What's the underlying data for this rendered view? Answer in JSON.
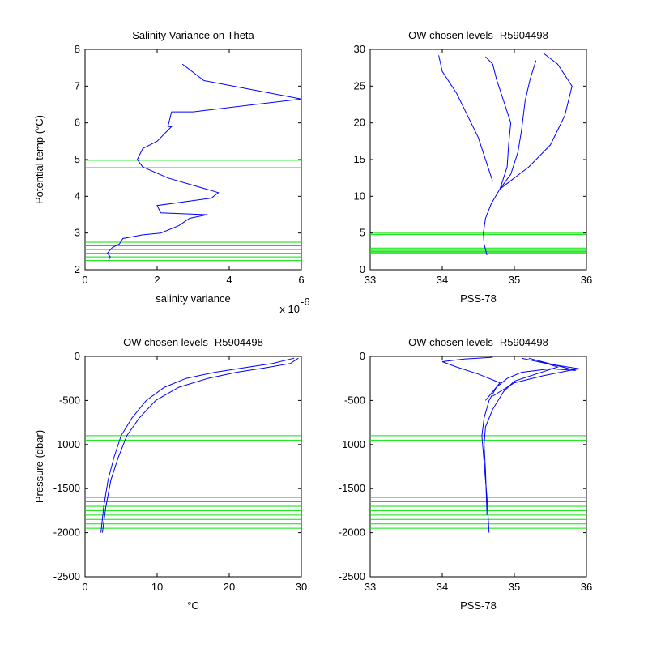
{
  "figure": {
    "colors": {
      "profile": "#0000ff",
      "levels": "#00e600"
    }
  },
  "chart_data": [
    {
      "type": "line",
      "title": "Salinity Variance on Theta",
      "xlabel": "salinity variance",
      "ylabel": "Potential temp (°C)",
      "x_multiplier": "x 10",
      "x_exponent": "-6",
      "xlim": [
        0,
        6
      ],
      "ylim": [
        2,
        8
      ],
      "xticks": [
        0,
        2,
        4,
        6
      ],
      "yticks": [
        2,
        3,
        4,
        5,
        6,
        7,
        8
      ],
      "xtick_labels": [
        "0",
        "2",
        "4",
        "6"
      ],
      "ytick_labels": [
        "2",
        "3",
        "4",
        "5",
        "6",
        "7",
        "8"
      ],
      "series": [
        {
          "x": [
            0.65,
            0.7,
            0.62,
            0.75,
            0.95,
            1.05,
            1.6,
            2.1,
            2.6,
            2.9,
            3.4,
            2.1,
            2.0,
            3.5,
            3.7,
            2.3,
            1.6,
            1.45,
            1.6,
            2.0,
            2.4,
            2.3,
            2.4,
            3.0,
            6.0,
            3.3,
            2.7
          ],
          "y": [
            2.25,
            2.35,
            2.45,
            2.6,
            2.7,
            2.85,
            2.95,
            3.0,
            3.2,
            3.4,
            3.5,
            3.55,
            3.75,
            3.95,
            4.1,
            4.5,
            4.8,
            5.0,
            5.3,
            5.5,
            5.9,
            5.9,
            6.3,
            6.3,
            6.65,
            7.15,
            7.6
          ]
        }
      ],
      "reference_lines": {
        "orientation": "horizontal",
        "values": [
          2.25,
          2.35,
          2.45,
          2.55,
          2.65,
          2.75,
          4.78,
          4.98
        ]
      }
    },
    {
      "type": "line",
      "title": "OW chosen levels -R5904498",
      "xlabel": "PSS-78",
      "ylabel": "",
      "xlim": [
        33,
        36
      ],
      "ylim": [
        0,
        30
      ],
      "xticks": [
        33,
        34,
        35,
        36
      ],
      "yticks": [
        0,
        5,
        10,
        15,
        20,
        25,
        30
      ],
      "xtick_labels": [
        "33",
        "34",
        "35",
        "36"
      ],
      "ytick_labels": [
        "0",
        "5",
        "10",
        "15",
        "20",
        "25",
        "30"
      ],
      "series": [
        {
          "x": [
            34.62,
            34.58,
            34.57,
            34.6,
            34.68,
            34.8,
            34.95,
            35.05,
            35.1,
            35.15,
            35.22,
            35.3
          ],
          "y": [
            2.0,
            3.5,
            5.0,
            7.0,
            9.0,
            11.0,
            13.0,
            16.0,
            19.0,
            23.0,
            26.0,
            28.5
          ]
        },
        {
          "x": [
            34.8,
            34.9,
            34.92,
            34.95,
            34.85,
            34.75,
            34.7,
            34.6
          ],
          "y": [
            11.0,
            14.0,
            17.0,
            20.0,
            23.0,
            26.0,
            28.0,
            29.0
          ]
        },
        {
          "x": [
            34.8,
            35.2,
            35.5,
            35.7,
            35.8,
            35.6,
            35.4
          ],
          "y": [
            11.0,
            14.0,
            17.0,
            21.0,
            25.0,
            28.0,
            29.5
          ]
        },
        {
          "x": [
            34.7,
            34.5,
            34.2,
            34.0,
            33.95
          ],
          "y": [
            12.0,
            18.0,
            24.0,
            27.0,
            29.2
          ]
        }
      ],
      "reference_lines": {
        "orientation": "horizontal",
        "values": [
          2.2,
          2.35,
          2.5,
          2.65,
          2.8,
          2.95,
          4.78,
          4.98
        ]
      }
    },
    {
      "type": "line",
      "title": "OW chosen levels -R5904498",
      "xlabel": "°C",
      "ylabel": "Pressure (dbar)",
      "xlim": [
        0,
        30
      ],
      "ylim": [
        -2500,
        0
      ],
      "xticks": [
        0,
        10,
        20,
        30
      ],
      "yticks": [
        -2500,
        -2000,
        -1500,
        -1000,
        -500,
        0
      ],
      "xtick_labels": [
        "0",
        "10",
        "20",
        "30"
      ],
      "ytick_labels": [
        "-2500",
        "-2000",
        "-1500",
        "-1000",
        "-500",
        "0"
      ],
      "series": [
        {
          "x": [
            2.2,
            2.6,
            3.2,
            4.0,
            5.0,
            6.5,
            8.5,
            11.0,
            14.0,
            18.0,
            22.0,
            26.0,
            29.0
          ],
          "y": [
            -2000,
            -1700,
            -1400,
            -1150,
            -900,
            -700,
            -500,
            -350,
            -250,
            -180,
            -130,
            -80,
            -20
          ]
        },
        {
          "x": [
            2.4,
            2.9,
            3.6,
            4.6,
            5.8,
            7.5,
            9.8,
            13.0,
            17.0,
            21.0,
            25.0,
            28.5,
            29.6
          ],
          "y": [
            -2000,
            -1700,
            -1400,
            -1150,
            -900,
            -700,
            -500,
            -350,
            -250,
            -180,
            -130,
            -80,
            -20
          ]
        }
      ],
      "reference_lines": {
        "orientation": "horizontal",
        "values": [
          -1950,
          -1900,
          -1850,
          -1800,
          -1750,
          -1700,
          -1650,
          -1600,
          -950,
          -900
        ]
      }
    },
    {
      "type": "line",
      "title": "OW chosen levels -R5904498",
      "xlabel": "PSS-78",
      "ylabel": "",
      "xlim": [
        33,
        36
      ],
      "ylim": [
        -2500,
        0
      ],
      "xticks": [
        33,
        34,
        35,
        36
      ],
      "yticks": [
        -2500,
        -2000,
        -1500,
        -1000,
        -500,
        0
      ],
      "xtick_labels": [
        "33",
        "34",
        "35",
        "36"
      ],
      "ytick_labels": [
        "-2500",
        "-2000",
        "-1500",
        "-1000",
        "-500",
        "0"
      ],
      "series": [
        {
          "x": [
            34.65,
            34.62,
            34.58,
            34.55,
            34.58,
            34.65,
            34.75,
            34.9,
            35.1,
            35.5,
            35.85,
            35.2
          ],
          "y": [
            -2000,
            -1600,
            -1200,
            -900,
            -700,
            -500,
            -350,
            -250,
            -180,
            -140,
            -160,
            -20
          ]
        },
        {
          "x": [
            34.62,
            34.6,
            34.58,
            34.6,
            34.7,
            34.85,
            35.0,
            35.3,
            35.6,
            35.3
          ],
          "y": [
            -1800,
            -1300,
            -1000,
            -800,
            -600,
            -400,
            -280,
            -200,
            -120,
            -40
          ]
        },
        {
          "x": [
            34.6,
            34.8,
            34.5,
            34.2,
            34.0,
            34.3,
            34.7
          ],
          "y": [
            -500,
            -300,
            -200,
            -120,
            -60,
            -30,
            -10
          ]
        },
        {
          "x": [
            34.7,
            35.0,
            35.4,
            35.7,
            35.9,
            35.5,
            35.1
          ],
          "y": [
            -450,
            -300,
            -220,
            -170,
            -140,
            -90,
            -20
          ]
        }
      ],
      "reference_lines": {
        "orientation": "horizontal",
        "values": [
          -1950,
          -1900,
          -1850,
          -1800,
          -1750,
          -1700,
          -1650,
          -1600,
          -950,
          -900
        ]
      }
    }
  ]
}
